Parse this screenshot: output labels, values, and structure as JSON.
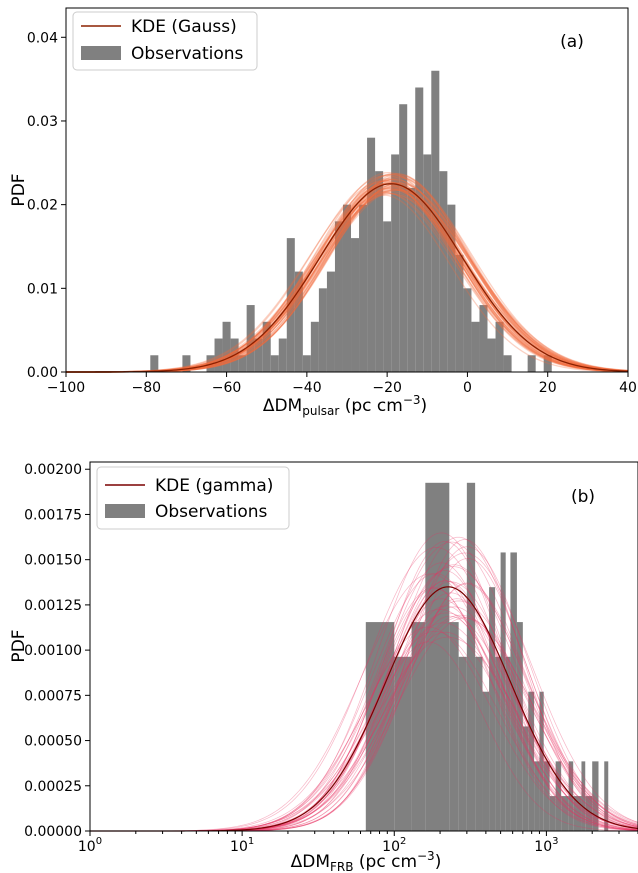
{
  "chart_data": [
    {
      "type": "bar",
      "panel_label": "(a)",
      "xlabel": {
        "main": "ΔDM",
        "sub": "pulsar",
        "unit_pre": " (pc cm",
        "unit_sup": "−3",
        "unit_post": ")"
      },
      "ylabel": "PDF",
      "xlim": [
        -100,
        40
      ],
      "ylim": [
        0,
        0.0435
      ],
      "xticks": [
        -100,
        -80,
        -60,
        -40,
        -20,
        0,
        20,
        40
      ],
      "xtick_labels": [
        "−100",
        "−80",
        "−60",
        "−40",
        "−20",
        "0",
        "20",
        "40"
      ],
      "yticks": [
        0.0,
        0.01,
        0.02,
        0.03,
        0.04
      ],
      "ytick_labels": [
        "0.00",
        "0.01",
        "0.02",
        "0.03",
        "0.04"
      ],
      "grid": false,
      "legend": {
        "position": "top-left",
        "entries": [
          "KDE (Gauss)",
          "Observations"
        ]
      },
      "hist_color": "#808080",
      "kde_color": "#8b2000",
      "band_color": "#f26b3a",
      "bins": [
        [
          -79,
          -77,
          0.002
        ],
        [
          -71,
          -69,
          0.002
        ],
        [
          -65,
          -63,
          0.002
        ],
        [
          -63,
          -61,
          0.004
        ],
        [
          -61,
          -59,
          0.006
        ],
        [
          -59,
          -57,
          0.004
        ],
        [
          -57,
          -55,
          0.002
        ],
        [
          -55,
          -53,
          0.008
        ],
        [
          -53,
          -51,
          0.004
        ],
        [
          -51,
          -49,
          0.006
        ],
        [
          -49,
          -47,
          0.002
        ],
        [
          -47,
          -45,
          0.004
        ],
        [
          -45,
          -43,
          0.016
        ],
        [
          -43,
          -41,
          0.012
        ],
        [
          -41,
          -39,
          0.002
        ],
        [
          -39,
          -37,
          0.006
        ],
        [
          -37,
          -35,
          0.01
        ],
        [
          -35,
          -33,
          0.012
        ],
        [
          -33,
          -31,
          0.018
        ],
        [
          -31,
          -29,
          0.02
        ],
        [
          -29,
          -27,
          0.016
        ],
        [
          -27,
          -25,
          0.02
        ],
        [
          -25,
          -23,
          0.028
        ],
        [
          -23,
          -21,
          0.024
        ],
        [
          -21,
          -19,
          0.018
        ],
        [
          -19,
          -17,
          0.026
        ],
        [
          -17,
          -15,
          0.032
        ],
        [
          -15,
          -13,
          0.022
        ],
        [
          -13,
          -11,
          0.034
        ],
        [
          -11,
          -9,
          0.026
        ],
        [
          -9,
          -7,
          0.036
        ],
        [
          -7,
          -5,
          0.024
        ],
        [
          -5,
          -3,
          0.02
        ],
        [
          -3,
          -1,
          0.014
        ],
        [
          -1,
          1,
          0.01
        ],
        [
          1,
          3,
          0.006
        ],
        [
          3,
          5,
          0.008
        ],
        [
          5,
          7,
          0.004
        ],
        [
          7,
          9,
          0.006
        ],
        [
          9,
          11,
          0.002
        ],
        [
          15,
          17,
          0.002
        ],
        [
          19,
          21,
          0.002
        ]
      ],
      "kde": {
        "mean": -19,
        "sd": 17.8,
        "peak": 0.0225
      }
    },
    {
      "type": "bar",
      "panel_label": "(b)",
      "xlabel": {
        "main": "ΔDM",
        "sub": "FRB",
        "unit_pre": " (pc cm",
        "unit_sup": "−3",
        "unit_post": ")"
      },
      "ylabel": "PDF",
      "xscale": "log",
      "xlim": [
        1,
        4000
      ],
      "ylim": [
        0,
        0.00204
      ],
      "xticks": [
        1,
        10,
        100,
        1000
      ],
      "xtick_labels": [
        {
          "base": "10",
          "exp": "0"
        },
        {
          "base": "10",
          "exp": "1"
        },
        {
          "base": "10",
          "exp": "2"
        },
        {
          "base": "10",
          "exp": "3"
        }
      ],
      "yticks": [
        0.0,
        0.00025,
        0.0005,
        0.00075,
        0.001,
        0.00125,
        0.0015,
        0.00175,
        0.002
      ],
      "ytick_labels": [
        "0.00000",
        "0.00025",
        "0.00050",
        "0.00075",
        "0.00100",
        "0.00125",
        "0.00150",
        "0.00175",
        "0.00200"
      ],
      "grid": false,
      "legend": {
        "position": "top-left",
        "entries": [
          "KDE (gamma)",
          "Observations"
        ]
      },
      "hist_color": "#808080",
      "kde_color": "#7a0000",
      "band_color": "#e83060",
      "bins": [
        [
          65,
          100,
          0.001155
        ],
        [
          100,
          130,
          0.000963
        ],
        [
          130,
          160,
          0.001155
        ],
        [
          160,
          230,
          0.001925
        ],
        [
          230,
          265,
          0.001155
        ],
        [
          265,
          300,
          0.000963
        ],
        [
          300,
          340,
          0.001925
        ],
        [
          340,
          380,
          0.000963
        ],
        [
          380,
          420,
          0.00077
        ],
        [
          420,
          460,
          0.001348
        ],
        [
          460,
          500,
          0.000963
        ],
        [
          500,
          540,
          0.00154
        ],
        [
          540,
          580,
          0.000963
        ],
        [
          580,
          640,
          0.00154
        ],
        [
          640,
          700,
          0.001155
        ],
        [
          700,
          760,
          0.000578
        ],
        [
          760,
          830,
          0.00077
        ],
        [
          830,
          900,
          0.000385
        ],
        [
          900,
          960,
          0.00077
        ],
        [
          960,
          1050,
          0.000385
        ],
        [
          1050,
          1150,
          0.000193
        ],
        [
          1150,
          1250,
          0.000385
        ],
        [
          1250,
          1400,
          0.000193
        ],
        [
          1400,
          1500,
          0.000385
        ],
        [
          1500,
          1700,
          0.000193
        ],
        [
          1700,
          1800,
          0.000385
        ],
        [
          1800,
          2000,
          0.000193
        ],
        [
          2000,
          2200,
          0.000385
        ],
        [
          2400,
          2550,
          0.000385
        ]
      ],
      "kde": {
        "mu": 5.42,
        "sigma": 0.95,
        "peak": 0.00135
      }
    }
  ]
}
